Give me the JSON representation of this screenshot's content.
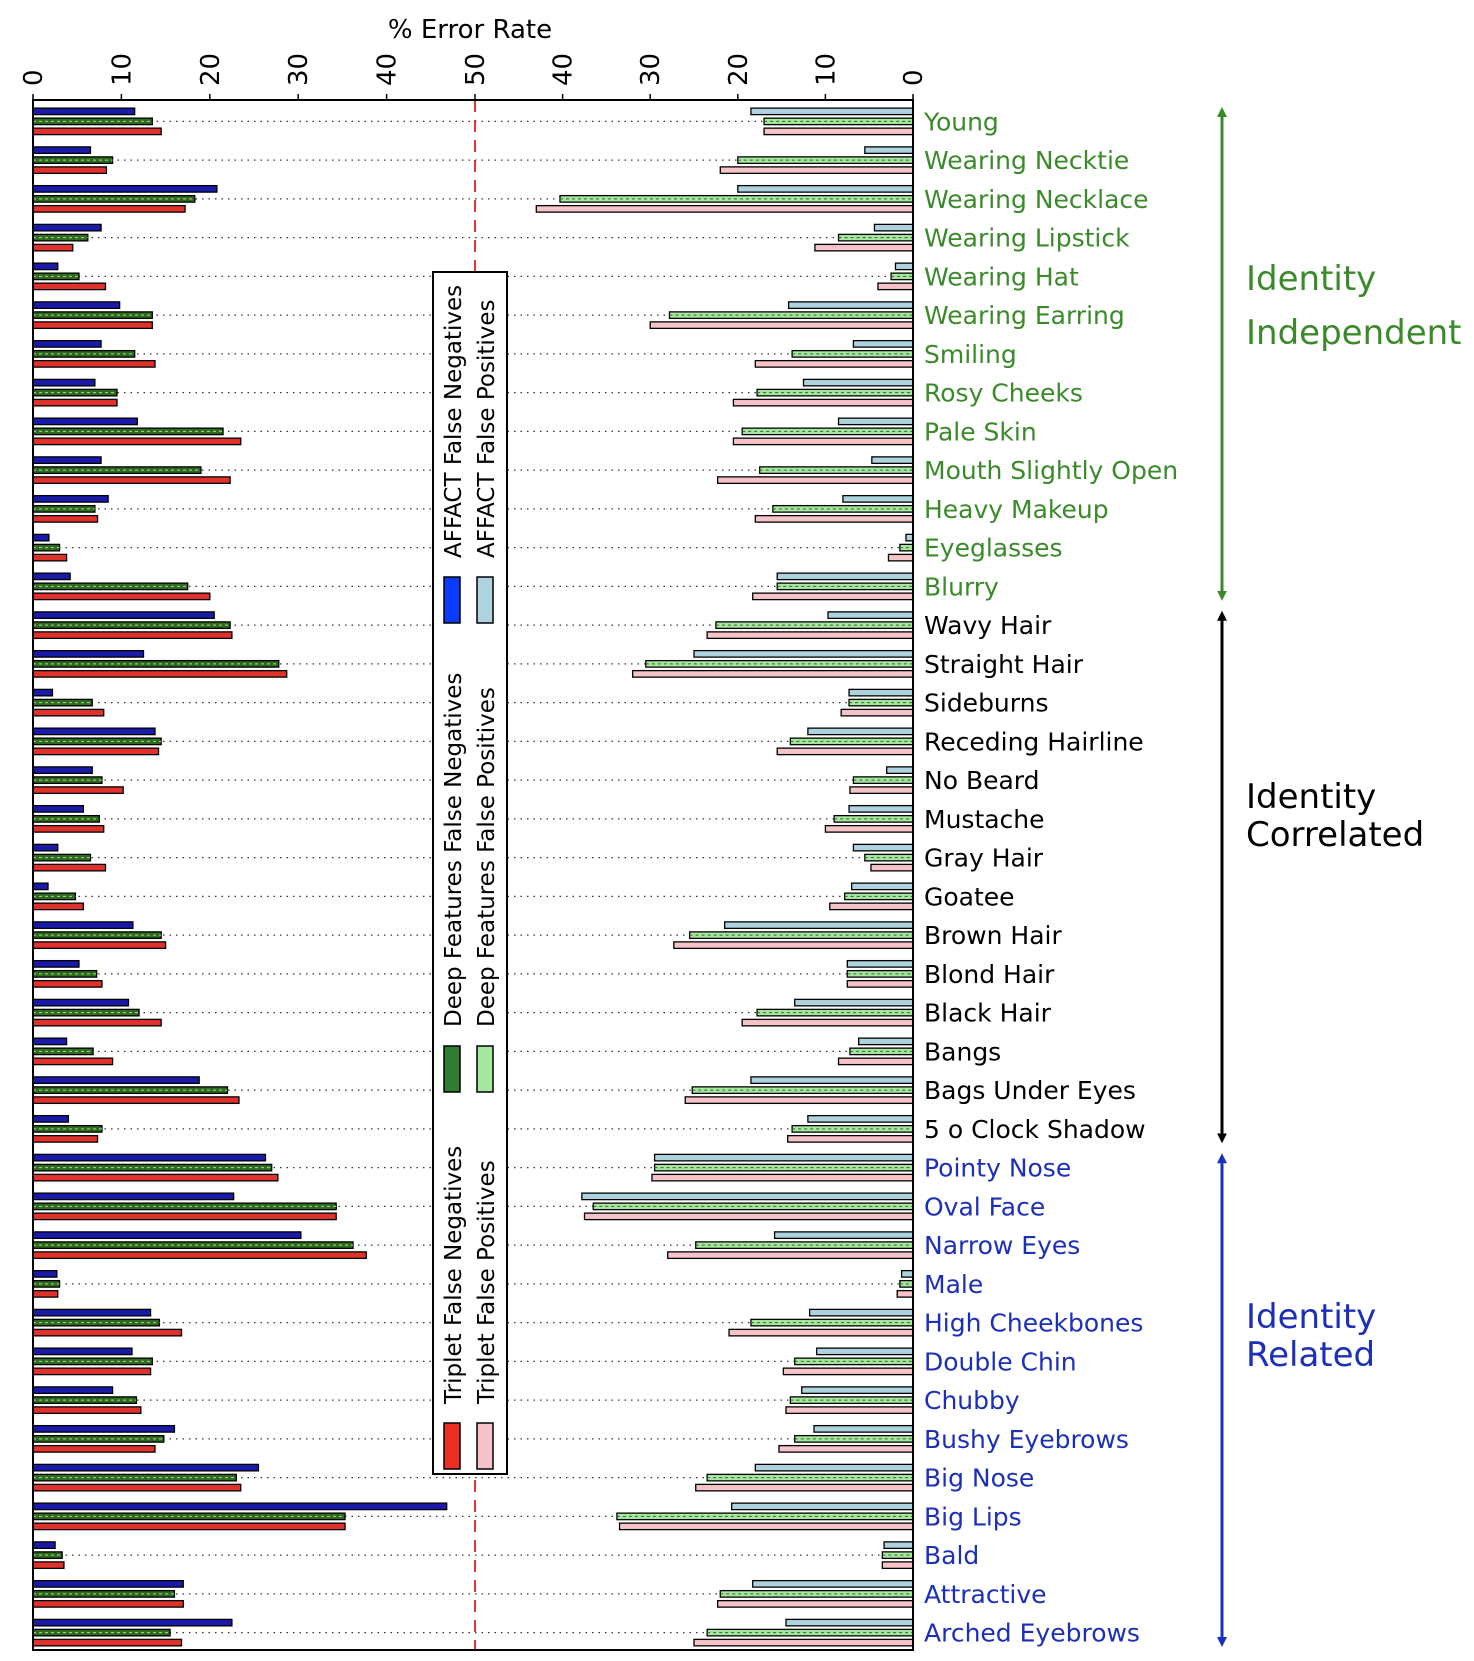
{
  "chart_data": {
    "type": "bar",
    "title": "% Error Rate",
    "xlim": [
      0,
      50
    ],
    "x_ticks_left": [
      0,
      10,
      20,
      30,
      40,
      50
    ],
    "x_ticks_right": [
      40,
      30,
      20,
      10,
      0
    ],
    "reference_line": 50,
    "series": [
      {
        "name": "AFFACT False Negatives",
        "side": "left",
        "color": "#1a1aa8",
        "legend_color": "#0a3cff",
        "dashed": false
      },
      {
        "name": "Deep Features False Negatives",
        "side": "left",
        "color": "#2e6b1e",
        "legend_color": "#2e7d32",
        "dashed": true
      },
      {
        "name": "Triplet False Negatives",
        "side": "left",
        "color": "#e0322a",
        "legend_color": "#ee2e24",
        "dashed": false
      },
      {
        "name": "AFFACT False Positives",
        "side": "right",
        "color": "#aed3e0",
        "legend_color": "#aed3e0",
        "dashed": false
      },
      {
        "name": "Deep Features False Positives",
        "side": "right",
        "color": "#a6e6a0",
        "legend_color": "#a6e6a0",
        "dashed": true
      },
      {
        "name": "Triplet False Positives",
        "side": "right",
        "color": "#f5c3c8",
        "legend_color": "#f5c3c8",
        "dashed": false
      }
    ],
    "groups": [
      {
        "name": "Identity Independent",
        "color": "#3a8a2a"
      },
      {
        "name": "Identity Correlated",
        "color": "#000000"
      },
      {
        "name": "Identity Related",
        "color": "#1c2fb8"
      }
    ],
    "attributes": [
      {
        "label": "Young",
        "group": 0,
        "fn": [
          11.5,
          13.5,
          14.5
        ],
        "fp": [
          18.5,
          17,
          17
        ]
      },
      {
        "label": "Wearing Necktie",
        "group": 0,
        "fn": [
          6.5,
          9,
          8.3
        ],
        "fp": [
          5.5,
          20,
          22
        ]
      },
      {
        "label": "Wearing  Necklace",
        "group": 0,
        "fn": [
          20.8,
          18.3,
          17.2
        ],
        "fp": [
          20,
          40.3,
          43
        ]
      },
      {
        "label": "Wearing Lipstick",
        "group": 0,
        "fn": [
          7.7,
          6.2,
          4.5
        ],
        "fp": [
          4.4,
          8.5,
          11.2
        ]
      },
      {
        "label": "Wearing Hat",
        "group": 0,
        "fn": [
          2.8,
          5.2,
          8.2
        ],
        "fp": [
          2,
          2.5,
          4
        ]
      },
      {
        "label": "Wearing Earring",
        "group": 0,
        "fn": [
          9.8,
          13.5,
          13.5
        ],
        "fp": [
          14.2,
          27.8,
          30
        ]
      },
      {
        "label": "Smiling",
        "group": 0,
        "fn": [
          7.7,
          11.5,
          13.8
        ],
        "fp": [
          6.8,
          13.8,
          18
        ]
      },
      {
        "label": "Rosy Cheeks",
        "group": 0,
        "fn": [
          7,
          9.5,
          9.5
        ],
        "fp": [
          12.5,
          17.8,
          20.5
        ]
      },
      {
        "label": "Pale Skin",
        "group": 0,
        "fn": [
          11.8,
          21.5,
          23.5
        ],
        "fp": [
          8.5,
          19.5,
          20.5
        ]
      },
      {
        "label": "Mouth Slightly Open",
        "group": 0,
        "fn": [
          7.7,
          19,
          22.3
        ],
        "fp": [
          4.7,
          17.5,
          22.3
        ]
      },
      {
        "label": "Heavy Makeup",
        "group": 0,
        "fn": [
          8.5,
          7,
          7.3
        ],
        "fp": [
          8,
          16,
          18
        ]
      },
      {
        "label": "Eyeglasses",
        "group": 0,
        "fn": [
          1.8,
          3,
          3.8
        ],
        "fp": [
          0.8,
          1.5,
          2.8
        ]
      },
      {
        "label": "Blurry",
        "group": 0,
        "fn": [
          4.2,
          17.5,
          20
        ],
        "fp": [
          15.5,
          15.5,
          18.3
        ]
      },
      {
        "label": "Wavy Hair",
        "group": 1,
        "fn": [
          20.5,
          22.3,
          22.5
        ],
        "fp": [
          9.7,
          22.5,
          23.5
        ]
      },
      {
        "label": "Straight Hair",
        "group": 1,
        "fn": [
          12.5,
          27.8,
          28.7
        ],
        "fp": [
          25,
          30.5,
          32
        ]
      },
      {
        "label": "Sideburns",
        "group": 1,
        "fn": [
          2.2,
          6.7,
          8
        ],
        "fp": [
          7.3,
          7.3,
          8.2
        ]
      },
      {
        "label": "Receding Hairline",
        "group": 1,
        "fn": [
          13.8,
          14.5,
          14.2
        ],
        "fp": [
          12,
          14,
          15.5
        ]
      },
      {
        "label": "No Beard",
        "group": 1,
        "fn": [
          6.7,
          7.8,
          10.2
        ],
        "fp": [
          3,
          6.8,
          7.2
        ]
      },
      {
        "label": "Mustache",
        "group": 1,
        "fn": [
          5.7,
          7.5,
          8
        ],
        "fp": [
          7.3,
          9,
          10
        ]
      },
      {
        "label": "Gray Hair",
        "group": 1,
        "fn": [
          2.8,
          6.5,
          8.2
        ],
        "fp": [
          6.8,
          5.5,
          4.8
        ]
      },
      {
        "label": "Goatee",
        "group": 1,
        "fn": [
          1.7,
          4.8,
          5.7
        ],
        "fp": [
          7,
          7.8,
          9.5
        ]
      },
      {
        "label": "Brown Hair",
        "group": 1,
        "fn": [
          11.3,
          14.5,
          15
        ],
        "fp": [
          21.5,
          25.5,
          27.3
        ]
      },
      {
        "label": "Blond Hair",
        "group": 1,
        "fn": [
          5.2,
          7.2,
          7.8
        ],
        "fp": [
          7.5,
          7.5,
          7.5
        ]
      },
      {
        "label": "Black Hair",
        "group": 1,
        "fn": [
          10.8,
          12,
          14.5
        ],
        "fp": [
          13.5,
          17.8,
          19.5
        ]
      },
      {
        "label": "Bangs",
        "group": 1,
        "fn": [
          3.8,
          6.8,
          9
        ],
        "fp": [
          6.2,
          7.2,
          8.5
        ]
      },
      {
        "label": "Bags Under Eyes",
        "group": 1,
        "fn": [
          18.8,
          22,
          23.3
        ],
        "fp": [
          18.5,
          25.2,
          26
        ]
      },
      {
        "label": "5 o Clock Shadow",
        "group": 1,
        "fn": [
          4,
          7.8,
          7.3
        ],
        "fp": [
          12,
          13.8,
          14.3
        ]
      },
      {
        "label": "Pointy Nose",
        "group": 2,
        "fn": [
          26.3,
          27,
          27.7
        ],
        "fp": [
          29.5,
          29.5,
          29.8
        ]
      },
      {
        "label": "Oval Face",
        "group": 2,
        "fn": [
          22.7,
          34.3,
          34.3
        ],
        "fp": [
          37.8,
          36.5,
          37.5
        ]
      },
      {
        "label": "Narrow Eyes",
        "group": 2,
        "fn": [
          30.3,
          36.2,
          37.7
        ],
        "fp": [
          15.8,
          24.8,
          28
        ]
      },
      {
        "label": "Male",
        "group": 2,
        "fn": [
          2.7,
          3,
          2.8
        ],
        "fp": [
          1.3,
          1.5,
          1.8
        ]
      },
      {
        "label": "High Cheekbones",
        "group": 2,
        "fn": [
          13.3,
          14.3,
          16.8
        ],
        "fp": [
          11.8,
          18.5,
          21
        ]
      },
      {
        "label": "Double Chin",
        "group": 2,
        "fn": [
          11.2,
          13.5,
          13.3
        ],
        "fp": [
          11,
          13.5,
          14.8
        ]
      },
      {
        "label": "Chubby",
        "group": 2,
        "fn": [
          9,
          11.7,
          12.2
        ],
        "fp": [
          12.7,
          14,
          14.5
        ]
      },
      {
        "label": "Bushy Eyebrows",
        "group": 2,
        "fn": [
          16,
          14.8,
          13.8
        ],
        "fp": [
          11.3,
          13.5,
          15.3
        ]
      },
      {
        "label": "Big Nose",
        "group": 2,
        "fn": [
          25.5,
          23,
          23.5
        ],
        "fp": [
          18,
          23.5,
          24.8
        ]
      },
      {
        "label": "Big Lips",
        "group": 2,
        "fn": [
          46.8,
          35.3,
          35.3
        ],
        "fp": [
          20.7,
          33.8,
          33.5
        ]
      },
      {
        "label": "Bald",
        "group": 2,
        "fn": [
          2.5,
          3.3,
          3.5
        ],
        "fp": [
          3.3,
          3.5,
          3.5
        ]
      },
      {
        "label": "Attractive",
        "group": 2,
        "fn": [
          17,
          16,
          17
        ],
        "fp": [
          18.3,
          22,
          22.3
        ]
      },
      {
        "label": "Arched Eyebrows",
        "group": 2,
        "fn": [
          22.5,
          15.5,
          16.8
        ],
        "fp": [
          14.5,
          23.5,
          25
        ]
      }
    ]
  }
}
